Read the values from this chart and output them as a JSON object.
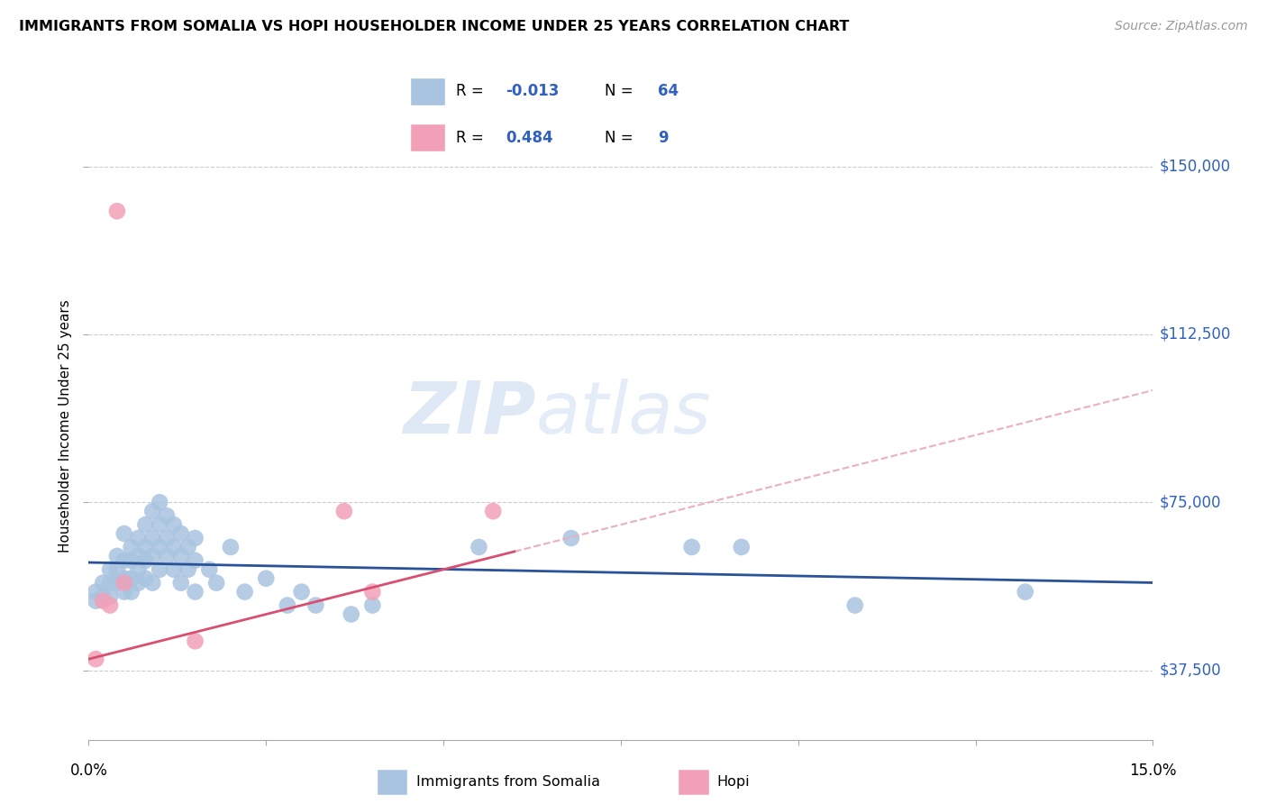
{
  "title": "IMMIGRANTS FROM SOMALIA VS HOPI HOUSEHOLDER INCOME UNDER 25 YEARS CORRELATION CHART",
  "source": "Source: ZipAtlas.com",
  "ylabel": "Householder Income Under 25 years",
  "y_ticks": [
    37500,
    75000,
    112500,
    150000
  ],
  "y_tick_labels": [
    "$37,500",
    "$75,000",
    "$112,500",
    "$150,000"
  ],
  "x_range": [
    0.0,
    0.15
  ],
  "y_range": [
    22000,
    162000
  ],
  "somalia_R": "-0.013",
  "somalia_N": "64",
  "hopi_R": "0.484",
  "hopi_N": "9",
  "somalia_color": "#a8c4e0",
  "hopi_color": "#f2a0b8",
  "somalia_line_color": "#2a5298",
  "hopi_line_color": "#d94f72",
  "hopi_dash_color": "#e8b0c0",
  "watermark_zip": "ZIP",
  "watermark_atlas": "atlas",
  "legend_text_color": "#3060c0",
  "somalia_points": [
    [
      0.001,
      55000
    ],
    [
      0.001,
      53000
    ],
    [
      0.002,
      57000
    ],
    [
      0.002,
      54000
    ],
    [
      0.003,
      60000
    ],
    [
      0.003,
      57000
    ],
    [
      0.003,
      54000
    ],
    [
      0.004,
      63000
    ],
    [
      0.004,
      60000
    ],
    [
      0.004,
      57000
    ],
    [
      0.005,
      68000
    ],
    [
      0.005,
      62000
    ],
    [
      0.005,
      58000
    ],
    [
      0.005,
      55000
    ],
    [
      0.006,
      65000
    ],
    [
      0.006,
      62000
    ],
    [
      0.006,
      58000
    ],
    [
      0.006,
      55000
    ],
    [
      0.007,
      67000
    ],
    [
      0.007,
      63000
    ],
    [
      0.007,
      60000
    ],
    [
      0.007,
      57000
    ],
    [
      0.008,
      70000
    ],
    [
      0.008,
      65000
    ],
    [
      0.008,
      62000
    ],
    [
      0.008,
      58000
    ],
    [
      0.009,
      73000
    ],
    [
      0.009,
      67000
    ],
    [
      0.009,
      63000
    ],
    [
      0.009,
      57000
    ],
    [
      0.01,
      75000
    ],
    [
      0.01,
      70000
    ],
    [
      0.01,
      65000
    ],
    [
      0.01,
      60000
    ],
    [
      0.011,
      72000
    ],
    [
      0.011,
      67000
    ],
    [
      0.011,
      63000
    ],
    [
      0.012,
      70000
    ],
    [
      0.012,
      65000
    ],
    [
      0.012,
      60000
    ],
    [
      0.013,
      68000
    ],
    [
      0.013,
      63000
    ],
    [
      0.013,
      57000
    ],
    [
      0.014,
      65000
    ],
    [
      0.014,
      60000
    ],
    [
      0.015,
      67000
    ],
    [
      0.015,
      62000
    ],
    [
      0.015,
      55000
    ],
    [
      0.017,
      60000
    ],
    [
      0.018,
      57000
    ],
    [
      0.02,
      65000
    ],
    [
      0.022,
      55000
    ],
    [
      0.025,
      58000
    ],
    [
      0.028,
      52000
    ],
    [
      0.03,
      55000
    ],
    [
      0.032,
      52000
    ],
    [
      0.037,
      50000
    ],
    [
      0.04,
      52000
    ],
    [
      0.055,
      65000
    ],
    [
      0.068,
      67000
    ],
    [
      0.085,
      65000
    ],
    [
      0.092,
      65000
    ],
    [
      0.108,
      52000
    ],
    [
      0.132,
      55000
    ]
  ],
  "hopi_points": [
    [
      0.001,
      40000
    ],
    [
      0.002,
      53000
    ],
    [
      0.003,
      52000
    ],
    [
      0.004,
      140000
    ],
    [
      0.005,
      57000
    ],
    [
      0.015,
      44000
    ],
    [
      0.036,
      73000
    ],
    [
      0.04,
      55000
    ],
    [
      0.057,
      73000
    ]
  ]
}
